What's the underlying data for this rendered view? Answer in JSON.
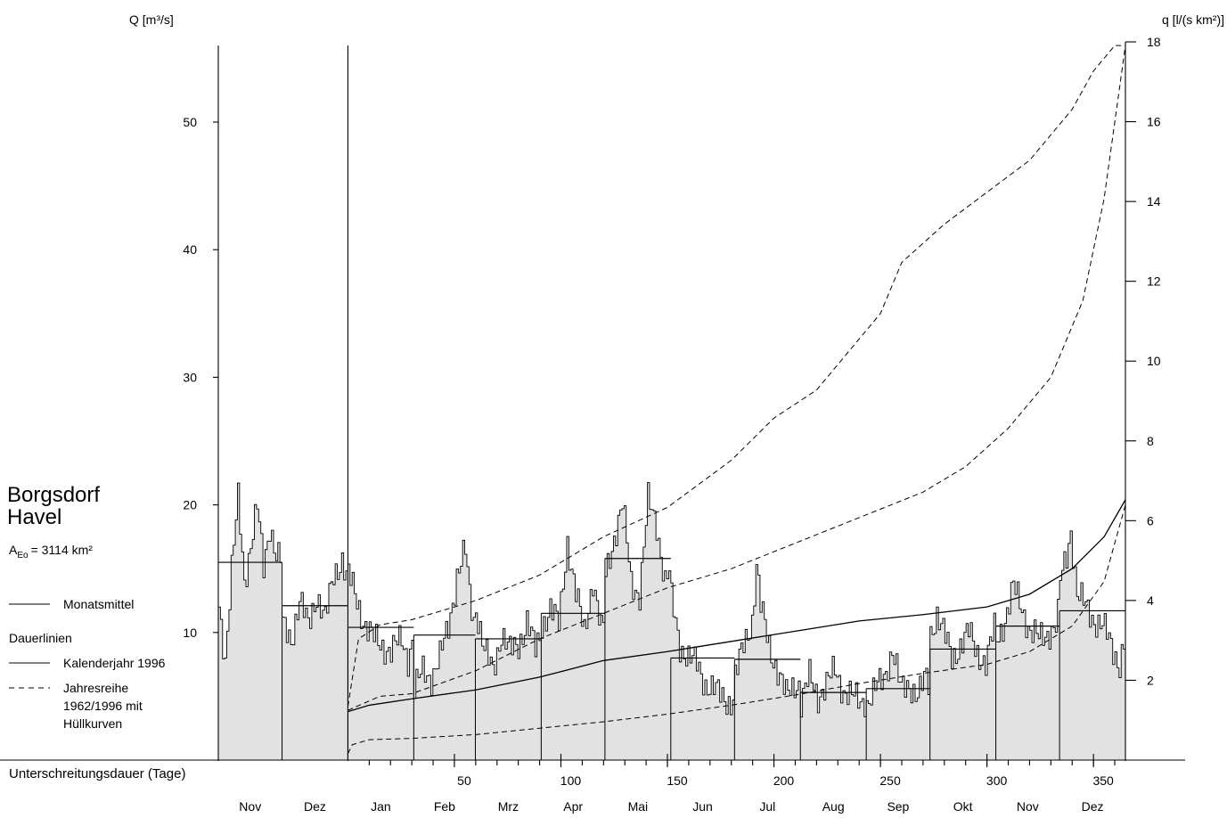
{
  "chart_data": {
    "type": "line",
    "station": "Borgsdorf",
    "river": "Havel",
    "catchment": {
      "symbol_main": "A",
      "symbol_sub": "Eo",
      "value_text": "= 3114 km²"
    },
    "y_left": {
      "label": "Q [m³/s]",
      "ticks": [
        10,
        20,
        30,
        40,
        50
      ],
      "ylim": [
        0,
        56
      ]
    },
    "y_right": {
      "label": "q [l/(s km²)]",
      "ticks": [
        2,
        4,
        6,
        8,
        10,
        12,
        14,
        16,
        18
      ],
      "ylim": [
        0,
        18
      ]
    },
    "x_axis": {
      "label": "Unterschreitungsdauer (Tage)",
      "ticks": [
        50,
        100,
        150,
        200,
        250,
        300,
        350
      ],
      "xlim": [
        0,
        365
      ]
    },
    "month_labels": [
      "Nov",
      "Dez",
      "Jan",
      "Feb",
      "Mrz",
      "Apr",
      "Mai",
      "Jun",
      "Jul",
      "Aug",
      "Sep",
      "Okt",
      "Nov",
      "Dez"
    ],
    "legend": {
      "monthly_mean": "Monatsmittel",
      "duration_title": "Dauerlinien",
      "calendar_year": "Kalenderjahr 1996",
      "series_lines": [
        "Jahresreihe",
        "1962/1996 mit",
        "Hüllkurven"
      ]
    },
    "monthly_means": [
      15.5,
      12.1,
      10.4,
      9.8,
      9.5,
      11.5,
      15.8,
      8.0,
      7.9,
      5.3,
      5.6,
      8.7,
      10.5,
      11.7
    ],
    "daily_anchor_points": [
      [
        [
          0,
          12
        ],
        [
          3,
          8
        ],
        [
          6,
          15
        ],
        [
          9,
          20.4
        ],
        [
          12,
          14
        ],
        [
          15,
          17
        ],
        [
          18,
          19.8
        ],
        [
          21,
          15
        ],
        [
          24,
          18.5
        ],
        [
          27,
          16
        ],
        [
          30,
          15.6
        ]
      ],
      [
        [
          0,
          10.5
        ],
        [
          4,
          9.5
        ],
        [
          8,
          12.5
        ],
        [
          12,
          10.5
        ],
        [
          16,
          13
        ],
        [
          20,
          11
        ],
        [
          24,
          14.5
        ],
        [
          28,
          15.8
        ],
        [
          31,
          13.5
        ]
      ],
      [
        [
          0,
          14.5
        ],
        [
          4,
          12.5
        ],
        [
          8,
          10.5
        ],
        [
          12,
          9.5
        ],
        [
          16,
          9
        ],
        [
          20,
          8.5
        ],
        [
          25,
          9.5
        ],
        [
          28,
          8
        ],
        [
          31,
          10
        ]
      ],
      [
        [
          0,
          5.5
        ],
        [
          4,
          7
        ],
        [
          8,
          6.5
        ],
        [
          12,
          8
        ],
        [
          16,
          10.5
        ],
        [
          20,
          14.5
        ],
        [
          24,
          16.3
        ],
        [
          26,
          13
        ],
        [
          29,
          10
        ]
      ],
      [
        [
          0,
          12
        ],
        [
          4,
          8.5
        ],
        [
          8,
          7
        ],
        [
          12,
          10
        ],
        [
          16,
          8.5
        ],
        [
          20,
          9
        ],
        [
          24,
          11
        ],
        [
          28,
          8.5
        ],
        [
          31,
          10
        ]
      ],
      [
        [
          0,
          10.5
        ],
        [
          4,
          12
        ],
        [
          8,
          10.5
        ],
        [
          12,
          17.2
        ],
        [
          16,
          13
        ],
        [
          20,
          10
        ],
        [
          24,
          14.2
        ],
        [
          28,
          10
        ],
        [
          30,
          11
        ]
      ],
      [
        [
          0,
          14.5
        ],
        [
          4,
          17.5
        ],
        [
          8,
          20
        ],
        [
          12,
          14
        ],
        [
          16,
          13
        ],
        [
          20,
          20.3
        ],
        [
          24,
          18.5
        ],
        [
          28,
          14
        ],
        [
          31,
          15
        ]
      ],
      [
        [
          0,
          12.5
        ],
        [
          4,
          9
        ],
        [
          8,
          8
        ],
        [
          12,
          7.5
        ],
        [
          16,
          6
        ],
        [
          20,
          5.5
        ],
        [
          24,
          5
        ],
        [
          28,
          4.5
        ],
        [
          30,
          5.5
        ]
      ],
      [
        [
          0,
          6.5
        ],
        [
          4,
          9
        ],
        [
          8,
          11
        ],
        [
          10,
          15.3
        ],
        [
          12,
          12
        ],
        [
          16,
          9
        ],
        [
          20,
          7
        ],
        [
          24,
          5
        ],
        [
          28,
          6
        ],
        [
          31,
          6
        ]
      ],
      [
        [
          0,
          4.5
        ],
        [
          4,
          6.5
        ],
        [
          8,
          5
        ],
        [
          12,
          6
        ],
        [
          16,
          7
        ],
        [
          20,
          5.5
        ],
        [
          24,
          5
        ],
        [
          28,
          4.5
        ],
        [
          31,
          5
        ]
      ],
      [
        [
          0,
          4.5
        ],
        [
          4,
          5.5
        ],
        [
          8,
          6.5
        ],
        [
          12,
          8.7
        ],
        [
          16,
          5.5
        ],
        [
          20,
          6
        ],
        [
          24,
          5
        ],
        [
          28,
          6.5
        ],
        [
          30,
          5.5
        ]
      ],
      [
        [
          0,
          10
        ],
        [
          3,
          11.5
        ],
        [
          6,
          10
        ],
        [
          10,
          8
        ],
        [
          14,
          9
        ],
        [
          18,
          10
        ],
        [
          22,
          8.5
        ],
        [
          26,
          7.5
        ],
        [
          31,
          11
        ]
      ],
      [
        [
          0,
          9.5
        ],
        [
          4,
          11
        ],
        [
          8,
          13.5
        ],
        [
          12,
          12
        ],
        [
          16,
          10
        ],
        [
          20,
          9.5
        ],
        [
          24,
          10
        ],
        [
          28,
          10.5
        ],
        [
          30,
          12
        ]
      ],
      [
        [
          0,
          14
        ],
        [
          3,
          16
        ],
        [
          5,
          18.1
        ],
        [
          8,
          13
        ],
        [
          12,
          12
        ],
        [
          16,
          11
        ],
        [
          20,
          10.5
        ],
        [
          24,
          9
        ],
        [
          28,
          7.5
        ],
        [
          31,
          10
        ]
      ]
    ],
    "duration_1996": [
      [
        0,
        3.8
      ],
      [
        10,
        4.3
      ],
      [
        30,
        4.8
      ],
      [
        60,
        5.5
      ],
      [
        90,
        6.5
      ],
      [
        120,
        7.8
      ],
      [
        150,
        8.5
      ],
      [
        180,
        9.3
      ],
      [
        210,
        10.1
      ],
      [
        240,
        10.9
      ],
      [
        270,
        11.4
      ],
      [
        300,
        12.0
      ],
      [
        320,
        13.0
      ],
      [
        340,
        15.0
      ],
      [
        355,
        17.5
      ],
      [
        365,
        20.4
      ]
    ],
    "envelope_upper": [
      [
        0,
        4.2
      ],
      [
        5,
        9.5
      ],
      [
        15,
        10.6
      ],
      [
        30,
        11.0
      ],
      [
        60,
        12.5
      ],
      [
        90,
        14.5
      ],
      [
        120,
        17.5
      ],
      [
        150,
        19.8
      ],
      [
        180,
        23.5
      ],
      [
        200,
        26.8
      ],
      [
        220,
        29
      ],
      [
        240,
        33
      ],
      [
        250,
        35
      ],
      [
        260,
        39
      ],
      [
        280,
        42
      ],
      [
        300,
        44.5
      ],
      [
        320,
        47
      ],
      [
        340,
        51
      ],
      [
        350,
        54
      ],
      [
        360,
        56
      ],
      [
        365,
        56
      ]
    ],
    "envelope_mean": [
      [
        0,
        3.9
      ],
      [
        15,
        5
      ],
      [
        30,
        5.2
      ],
      [
        60,
        7
      ],
      [
        90,
        9.5
      ],
      [
        120,
        11.5
      ],
      [
        150,
        13.5
      ],
      [
        180,
        15
      ],
      [
        210,
        17
      ],
      [
        240,
        19
      ],
      [
        270,
        21
      ],
      [
        290,
        23
      ],
      [
        310,
        26
      ],
      [
        330,
        30
      ],
      [
        345,
        36
      ],
      [
        355,
        44
      ],
      [
        360,
        50
      ],
      [
        365,
        56
      ]
    ],
    "envelope_lower": [
      [
        0,
        0.5
      ],
      [
        2,
        1.2
      ],
      [
        10,
        1.6
      ],
      [
        30,
        1.7
      ],
      [
        60,
        2.0
      ],
      [
        90,
        2.5
      ],
      [
        120,
        3.0
      ],
      [
        150,
        3.6
      ],
      [
        180,
        4.3
      ],
      [
        210,
        5.1
      ],
      [
        240,
        6.0
      ],
      [
        270,
        6.8
      ],
      [
        300,
        7.5
      ],
      [
        320,
        8.5
      ],
      [
        340,
        10.5
      ],
      [
        355,
        14
      ],
      [
        365,
        20
      ]
    ]
  }
}
